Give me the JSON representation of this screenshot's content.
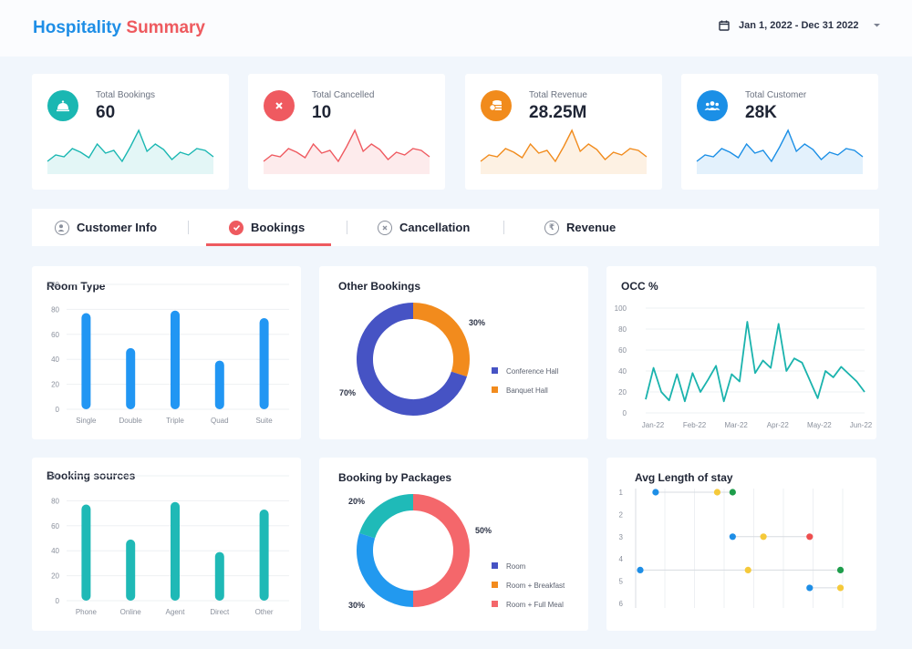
{
  "header": {
    "title_part1": "Hospitality",
    "title_part2": "Summary",
    "date_range": "Jan 1, 2022 - Dec 31 2022",
    "icons": [
      "calendar-icon",
      "caret-down-icon"
    ]
  },
  "stats": [
    {
      "label": "Total Bookings",
      "value": "60",
      "color": "#1ab7b2",
      "icon": "service-bell-icon",
      "spark": [
        14,
        21,
        19,
        28,
        24,
        18,
        33,
        23,
        26,
        14,
        30,
        48,
        25,
        33,
        27,
        16,
        24,
        21,
        28,
        26,
        19
      ]
    },
    {
      "label": "Total Cancelled",
      "value": "10",
      "color": "#ef5a60",
      "icon": "close-icon",
      "spark": [
        14,
        21,
        19,
        28,
        24,
        18,
        33,
        23,
        26,
        14,
        30,
        48,
        25,
        33,
        27,
        16,
        24,
        21,
        28,
        26,
        19
      ]
    },
    {
      "label": "Total Revenue",
      "value": "28.25M",
      "color": "#f18b1c",
      "icon": "coins-icon",
      "spark": [
        14,
        21,
        19,
        28,
        24,
        18,
        33,
        23,
        26,
        14,
        30,
        48,
        25,
        33,
        27,
        16,
        24,
        21,
        28,
        26,
        19
      ]
    },
    {
      "label": "Total Customer",
      "value": "28K",
      "color": "#1b8fe6",
      "icon": "users-icon",
      "spark": [
        14,
        21,
        19,
        28,
        24,
        18,
        33,
        23,
        26,
        14,
        30,
        48,
        25,
        33,
        27,
        16,
        24,
        21,
        28,
        26,
        19
      ]
    }
  ],
  "tabs": [
    {
      "label": "Customer Info",
      "icon": "user-icon",
      "active": false
    },
    {
      "label": "Bookings",
      "icon": "check-icon",
      "active": true
    },
    {
      "label": "Cancellation",
      "icon": "close-icon",
      "active": false
    },
    {
      "label": "Revenue",
      "icon": "rupee-icon",
      "active": false
    }
  ],
  "chart_data": [
    {
      "type": "bar",
      "title": "Room Type",
      "categories": [
        "Single",
        "Double",
        "Triple",
        "Quad",
        "Suite"
      ],
      "values": [
        77,
        49,
        79,
        39,
        73
      ],
      "ylim": [
        0,
        100
      ],
      "yticks": [
        0,
        20,
        40,
        60,
        80,
        100
      ],
      "color": "#2196f3"
    },
    {
      "type": "pie",
      "title": "Other Bookings",
      "labels": [
        "Conference Hall",
        "Banquet Hall"
      ],
      "values": [
        70,
        30
      ],
      "value_labels": [
        "70%",
        "30%"
      ],
      "colors": [
        "#4653c4",
        "#f28b1d"
      ],
      "legend": "right"
    },
    {
      "type": "line",
      "title": "OCC %",
      "x_ticks": [
        "Jan-22",
        "Feb-22",
        "Mar-22",
        "Apr-22",
        "May-22",
        "Jun-22"
      ],
      "values": [
        13,
        43,
        20,
        12,
        37,
        11,
        38,
        20,
        32,
        45,
        11,
        37,
        30,
        87,
        38,
        50,
        43,
        85,
        40,
        52,
        48,
        31,
        14,
        40,
        34,
        44,
        37,
        30,
        20
      ],
      "ylim": [
        0,
        100
      ],
      "yticks": [
        0,
        20,
        40,
        60,
        80,
        100
      ],
      "color": "#1ab3ad"
    },
    {
      "type": "bar",
      "title": "Booking sources",
      "categories": [
        "Phone",
        "Online",
        "Agent",
        "Direct",
        "Other"
      ],
      "values": [
        77,
        49,
        79,
        39,
        73
      ],
      "ylim": [
        0,
        100
      ],
      "yticks": [
        0,
        20,
        40,
        60,
        80,
        100
      ],
      "color": "#1fb9b6"
    },
    {
      "type": "pie",
      "title": "Booking by Packages",
      "labels": [
        "Room",
        "Room + Breakfast",
        "Room + Full Meal"
      ],
      "values": [
        30,
        20,
        50
      ],
      "value_labels": [
        "30%",
        "20%",
        "50%"
      ],
      "colors": [
        "#2299ef",
        "#1fbab8",
        "#f4676b"
      ],
      "legend_colors": [
        "#4653c4",
        "#f28b1d",
        "#f4676b"
      ],
      "legend": "right"
    },
    {
      "type": "scatter",
      "title": "Avg Length of stay",
      "yticks": [
        1,
        2,
        3,
        4,
        5,
        6
      ],
      "rows": [
        {
          "y": 1,
          "points": [
            {
              "x": 1,
              "c": "#1e8ee6"
            },
            {
              "x": 5,
              "c": "#f5c93a"
            },
            {
              "x": 6,
              "c": "#1e9d4b"
            }
          ]
        },
        {
          "y": 3,
          "points": [
            {
              "x": 6,
              "c": "#1e8ee6"
            },
            {
              "x": 8,
              "c": "#f5c93a"
            },
            {
              "x": 11,
              "c": "#ee4f4f"
            }
          ]
        },
        {
          "y": 4.5,
          "points": [
            {
              "x": 0,
              "c": "#1e8ee6"
            },
            {
              "x": 7,
              "c": "#f5c93a"
            },
            {
              "x": 13,
              "c": "#1e9d4b"
            }
          ]
        },
        {
          "y": 5.3,
          "points": [
            {
              "x": 11,
              "c": "#1e8ee6"
            },
            {
              "x": 13,
              "c": "#f5c93a"
            }
          ]
        }
      ],
      "xlim": [
        0,
        13.5
      ],
      "ylim": [
        1,
        6
      ]
    }
  ]
}
